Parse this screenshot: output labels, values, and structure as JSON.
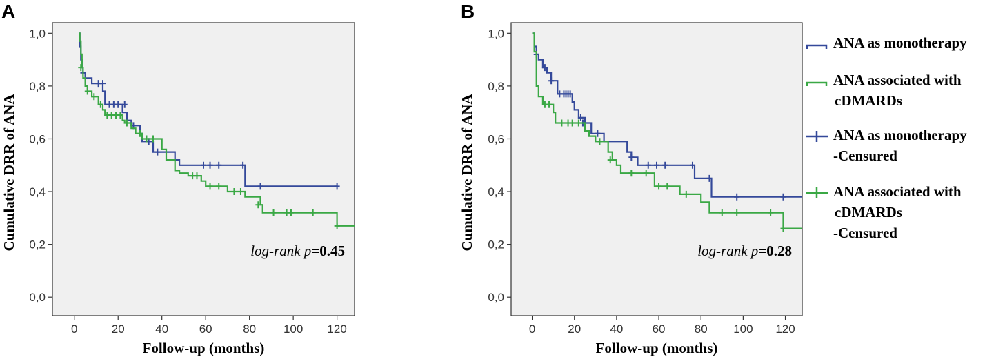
{
  "colors": {
    "monotherapy": "#34499a",
    "combination": "#3aa845",
    "plot_bg": "#f0f0f0"
  },
  "legend": {
    "items": [
      {
        "lines": [
          "ANA as monotherapy"
        ],
        "series": "monotherapy",
        "symbol": "step-line"
      },
      {
        "lines": [
          "ANA associated with",
          "cDMARDs"
        ],
        "series": "combination",
        "symbol": "step-line"
      },
      {
        "lines": [
          "ANA as monotherapy",
          "-Censured"
        ],
        "series": "monotherapy",
        "symbol": "plus"
      },
      {
        "lines": [
          "ANA associated with",
          "cDMARDs",
          "-Censured"
        ],
        "series": "combination",
        "symbol": "plus"
      }
    ]
  },
  "chart_data": [
    {
      "panel": "A",
      "type": "line",
      "subtype": "kaplan-meier-step",
      "xlabel": "Follow-up (months)",
      "ylabel": "Cumulative DRR of ANA",
      "xlim": [
        -10,
        128
      ],
      "ylim": [
        -0.07,
        1.04
      ],
      "xticks": [
        0,
        20,
        40,
        60,
        80,
        100,
        120
      ],
      "yticks": [
        "0,0",
        "0,2",
        "0,4",
        "0,6",
        "0,8",
        "1,0"
      ],
      "annotation": {
        "prefix": "log-rank p",
        "value": "=0.45"
      },
      "series": [
        {
          "name": "ANA as monotherapy",
          "color_key": "monotherapy",
          "steps": [
            [
              2,
              1.0
            ],
            [
              2.5,
              0.95
            ],
            [
              3,
              0.9
            ],
            [
              3.5,
              0.87
            ],
            [
              4,
              0.85
            ],
            [
              5,
              0.83
            ],
            [
              8,
              0.81
            ],
            [
              13,
              0.78
            ],
            [
              14,
              0.73
            ],
            [
              22,
              0.7
            ],
            [
              24,
              0.67
            ],
            [
              26,
              0.65
            ],
            [
              30,
              0.62
            ],
            [
              31,
              0.59
            ],
            [
              36,
              0.55
            ],
            [
              46,
              0.52
            ],
            [
              48,
              0.5
            ],
            [
              78,
              0.42
            ],
            [
              120,
              0.42
            ]
          ],
          "censored": [
            [
              4,
              0.85
            ],
            [
              11,
              0.81
            ],
            [
              13,
              0.81
            ],
            [
              16,
              0.73
            ],
            [
              18,
              0.73
            ],
            [
              20,
              0.73
            ],
            [
              23,
              0.73
            ],
            [
              27,
              0.65
            ],
            [
              34,
              0.59
            ],
            [
              38,
              0.55
            ],
            [
              59,
              0.5
            ],
            [
              62,
              0.5
            ],
            [
              66,
              0.5
            ],
            [
              77,
              0.5
            ],
            [
              85,
              0.42
            ],
            [
              120,
              0.42
            ]
          ]
        },
        {
          "name": "ANA associated with cDMARDs",
          "color_key": "combination",
          "steps": [
            [
              2,
              1.0
            ],
            [
              2.5,
              0.97
            ],
            [
              3,
              0.92
            ],
            [
              3.5,
              0.87
            ],
            [
              4,
              0.83
            ],
            [
              5,
              0.8
            ],
            [
              6,
              0.78
            ],
            [
              8,
              0.76
            ],
            [
              11,
              0.73
            ],
            [
              13,
              0.71
            ],
            [
              14,
              0.69
            ],
            [
              22,
              0.67
            ],
            [
              23,
              0.66
            ],
            [
              26,
              0.64
            ],
            [
              28,
              0.62
            ],
            [
              31,
              0.6
            ],
            [
              40,
              0.56
            ],
            [
              42,
              0.52
            ],
            [
              46,
              0.48
            ],
            [
              48,
              0.47
            ],
            [
              52,
              0.46
            ],
            [
              58,
              0.44
            ],
            [
              60,
              0.42
            ],
            [
              70,
              0.4
            ],
            [
              78,
              0.38
            ],
            [
              85,
              0.35
            ],
            [
              86,
              0.32
            ],
            [
              120,
              0.27
            ],
            [
              128,
              0.27
            ]
          ],
          "censored": [
            [
              3,
              0.87
            ],
            [
              6,
              0.78
            ],
            [
              9,
              0.76
            ],
            [
              12,
              0.73
            ],
            [
              15,
              0.69
            ],
            [
              17,
              0.69
            ],
            [
              19,
              0.69
            ],
            [
              21,
              0.69
            ],
            [
              24,
              0.66
            ],
            [
              30,
              0.62
            ],
            [
              33,
              0.6
            ],
            [
              36,
              0.6
            ],
            [
              54,
              0.46
            ],
            [
              56,
              0.46
            ],
            [
              62,
              0.42
            ],
            [
              66,
              0.42
            ],
            [
              73,
              0.4
            ],
            [
              76,
              0.4
            ],
            [
              84,
              0.35
            ],
            [
              91,
              0.32
            ],
            [
              97,
              0.32
            ],
            [
              99,
              0.32
            ],
            [
              109,
              0.32
            ],
            [
              120,
              0.27
            ]
          ]
        }
      ]
    },
    {
      "panel": "B",
      "type": "line",
      "subtype": "kaplan-meier-step",
      "xlabel": "Follow-up (months)",
      "ylabel": "Cumulative DRR of ANA",
      "xlim": [
        -10,
        128
      ],
      "ylim": [
        -0.07,
        1.04
      ],
      "xticks": [
        0,
        20,
        40,
        60,
        80,
        100,
        120
      ],
      "yticks": [
        "0,0",
        "0,2",
        "0,4",
        "0,6",
        "0,8",
        "1,0"
      ],
      "annotation": {
        "prefix": "log-rank p",
        "value": "=0.28"
      },
      "series": [
        {
          "name": "ANA as monotherapy",
          "color_key": "monotherapy",
          "steps": [
            [
              0,
              1.0
            ],
            [
              1,
              0.95
            ],
            [
              2,
              0.92
            ],
            [
              3,
              0.9
            ],
            [
              5,
              0.87
            ],
            [
              7,
              0.85
            ],
            [
              9,
              0.82
            ],
            [
              12,
              0.77
            ],
            [
              19,
              0.74
            ],
            [
              20,
              0.71
            ],
            [
              22,
              0.68
            ],
            [
              25,
              0.66
            ],
            [
              28,
              0.62
            ],
            [
              30,
              0.62
            ],
            [
              34,
              0.59
            ],
            [
              45,
              0.55
            ],
            [
              47,
              0.53
            ],
            [
              50,
              0.5
            ],
            [
              77,
              0.45
            ],
            [
              83,
              0.45
            ],
            [
              85,
              0.38
            ],
            [
              128,
              0.38
            ]
          ],
          "censored": [
            [
              2,
              0.92
            ],
            [
              6,
              0.87
            ],
            [
              9,
              0.82
            ],
            [
              13,
              0.77
            ],
            [
              15,
              0.77
            ],
            [
              16,
              0.77
            ],
            [
              17,
              0.77
            ],
            [
              18,
              0.77
            ],
            [
              23,
              0.68
            ],
            [
              24,
              0.66
            ],
            [
              31,
              0.62
            ],
            [
              47,
              0.53
            ],
            [
              55,
              0.5
            ],
            [
              59,
              0.5
            ],
            [
              63,
              0.5
            ],
            [
              76,
              0.5
            ],
            [
              84,
              0.45
            ],
            [
              97,
              0.38
            ],
            [
              119,
              0.38
            ]
          ]
        },
        {
          "name": "ANA associated with cDMARDs",
          "color_key": "combination",
          "steps": [
            [
              0,
              1.0
            ],
            [
              1,
              0.93
            ],
            [
              2,
              0.8
            ],
            [
              3,
              0.76
            ],
            [
              5,
              0.73
            ],
            [
              10,
              0.7
            ],
            [
              11,
              0.66
            ],
            [
              25,
              0.63
            ],
            [
              27,
              0.61
            ],
            [
              30,
              0.59
            ],
            [
              36,
              0.55
            ],
            [
              38,
              0.52
            ],
            [
              40,
              0.5
            ],
            [
              42,
              0.47
            ],
            [
              58,
              0.42
            ],
            [
              70,
              0.39
            ],
            [
              80,
              0.36
            ],
            [
              84,
              0.32
            ],
            [
              119,
              0.26
            ],
            [
              128,
              0.26
            ]
          ],
          "censored": [
            [
              6,
              0.73
            ],
            [
              8,
              0.73
            ],
            [
              14,
              0.66
            ],
            [
              17,
              0.66
            ],
            [
              19,
              0.66
            ],
            [
              22,
              0.66
            ],
            [
              32,
              0.59
            ],
            [
              37,
              0.52
            ],
            [
              47,
              0.47
            ],
            [
              54,
              0.47
            ],
            [
              60,
              0.42
            ],
            [
              64,
              0.42
            ],
            [
              73,
              0.39
            ],
            [
              90,
              0.32
            ],
            [
              97,
              0.32
            ],
            [
              113,
              0.32
            ],
            [
              119,
              0.26
            ]
          ]
        }
      ]
    }
  ]
}
